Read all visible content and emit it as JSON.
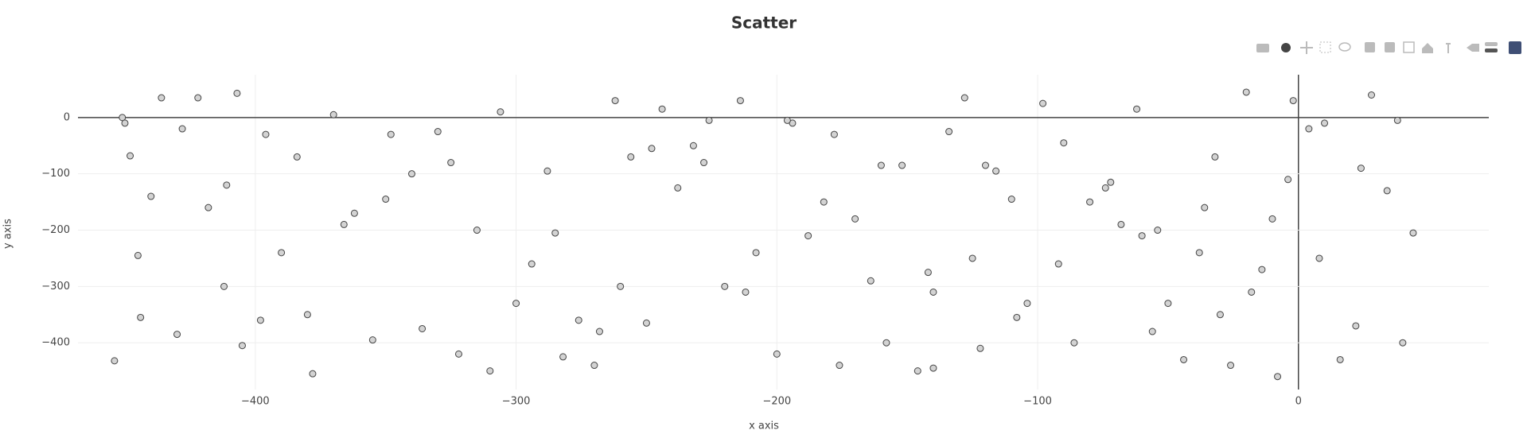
{
  "chart_data": {
    "type": "scatter",
    "title": "Scatter",
    "x_label": "x axis",
    "y_label": "y axis",
    "color": "#d3d3d3",
    "xlim": [
      -468,
      73
    ],
    "ylim": [
      -483,
      76
    ],
    "xticks": [
      {
        "value": -400,
        "label": "−400"
      },
      {
        "value": -300,
        "label": "−300"
      },
      {
        "value": -200,
        "label": "−200"
      },
      {
        "value": -100,
        "label": "−100"
      },
      0
    ],
    "yticks": [
      0,
      {
        "value": -100,
        "label": "−100"
      },
      {
        "value": -200,
        "label": "−200"
      },
      {
        "value": -300,
        "label": "−300"
      },
      {
        "value": -400,
        "label": "−400"
      }
    ],
    "grid": true,
    "x": [
      -451,
      -450,
      -448,
      -454,
      -436,
      -422,
      -407,
      -411,
      -405,
      -444,
      -440,
      -430,
      -418,
      -396,
      -390,
      -384,
      -378,
      -370,
      -362,
      -355,
      -348,
      -340,
      -336,
      -330,
      -322,
      -315,
      -306,
      -300,
      -294,
      -288,
      -282,
      -276,
      -270,
      -262,
      -256,
      -250,
      -244,
      -238,
      -232,
      -226,
      -220,
      -214,
      -208,
      -200,
      -194,
      -188,
      -182,
      -176,
      -170,
      -164,
      -158,
      -152,
      -146,
      -140,
      -134,
      -128,
      -122,
      -116,
      -110,
      -104,
      -98,
      -92,
      -86,
      -80,
      -74,
      -68,
      -62,
      -56,
      -50,
      -44,
      -38,
      -32,
      -26,
      -20,
      -14,
      -8,
      -2,
      4,
      10,
      16,
      22,
      28,
      34,
      40,
      44,
      -445,
      -428,
      -412,
      -398,
      -380,
      -366,
      -350,
      -325,
      -310,
      -285,
      -268,
      -248,
      -228,
      -212,
      -196,
      -178,
      -160,
      -142,
      -125,
      -108,
      -90,
      -72,
      -54,
      -36,
      -18,
      -4,
      8,
      24,
      38,
      -260,
      -140,
      -120,
      -60,
      -30,
      -10
    ],
    "y": [
      0,
      -10,
      -68,
      -432,
      35,
      35,
      43,
      -120,
      -405,
      -355,
      -140,
      -385,
      -160,
      -30,
      -240,
      -70,
      -455,
      5,
      -170,
      -395,
      -30,
      -100,
      -375,
      -25,
      -420,
      -200,
      10,
      -330,
      -260,
      -95,
      -425,
      -360,
      -440,
      30,
      -70,
      -365,
      15,
      -125,
      -50,
      -5,
      -300,
      30,
      -240,
      -420,
      -10,
      -210,
      -150,
      -440,
      -180,
      -290,
      -400,
      -85,
      -450,
      -310,
      -25,
      35,
      -410,
      -95,
      -145,
      -330,
      25,
      -260,
      -400,
      -150,
      -125,
      -190,
      15,
      -380,
      -330,
      -430,
      -240,
      -70,
      -440,
      45,
      -270,
      -460,
      30,
      -20,
      -10,
      -430,
      -370,
      40,
      -130,
      -400,
      -205,
      -245,
      -20,
      -300,
      -360,
      -350,
      -190,
      -145,
      -80,
      -450,
      -205,
      -380,
      -55,
      -80,
      -310,
      -5,
      -30,
      -85,
      -275,
      -250,
      -355,
      -45,
      -115,
      -200,
      -160,
      -310,
      -110,
      -250,
      -90,
      -5,
      -300,
      -445,
      -85,
      -210,
      -350,
      -180
    ]
  }
}
